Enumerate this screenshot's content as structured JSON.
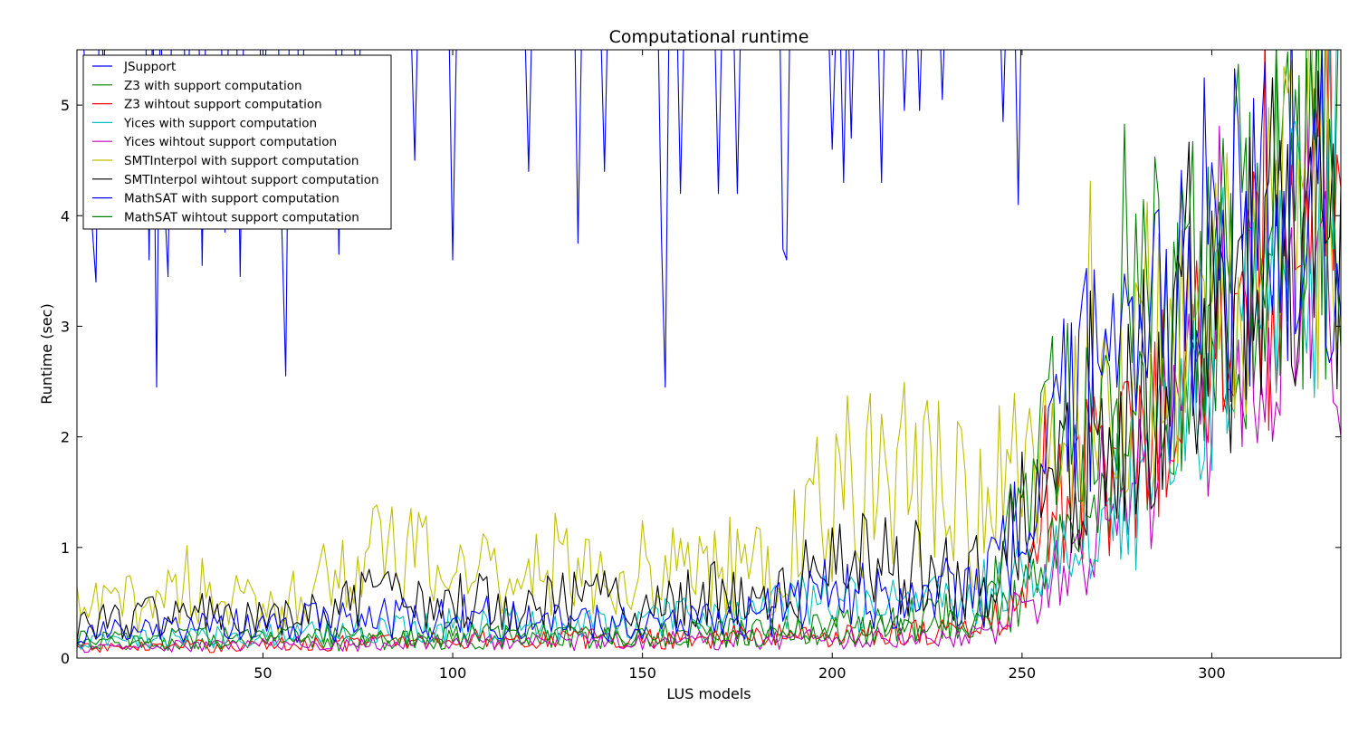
{
  "chart_data": {
    "type": "line",
    "title": "Computational runtime",
    "xlabel": "LUS models",
    "ylabel": "Runtime (sec)",
    "xlim": [
      1,
      334
    ],
    "ylim": [
      0,
      5.5
    ],
    "xticks": [
      50,
      100,
      150,
      200,
      250,
      300
    ],
    "yticks": [
      0,
      1,
      2,
      3,
      4,
      5
    ],
    "grid": false,
    "legend_position": "top-left",
    "series_spec": [
      {
        "name": "JSupport",
        "color": "#0000ff",
        "key": "jsupport",
        "anchors": [
          [
            1,
            5.6
          ],
          [
            3,
            5.4
          ],
          [
            4,
            4.6
          ],
          [
            5,
            3.9
          ],
          [
            6,
            3.4
          ],
          [
            8,
            5.3
          ],
          [
            14,
            5.6
          ],
          [
            20,
            3.6
          ],
          [
            22,
            2.45
          ],
          [
            24,
            4.2
          ],
          [
            25,
            3.45
          ],
          [
            30,
            4.5
          ],
          [
            34,
            3.55
          ],
          [
            40,
            3.85
          ],
          [
            44,
            3.45
          ],
          [
            50,
            4.2
          ],
          [
            55,
            3.85
          ],
          [
            56,
            2.55
          ],
          [
            60,
            3.9
          ],
          [
            70,
            3.65
          ],
          [
            75,
            4.6
          ],
          [
            90,
            4.5
          ],
          [
            100,
            3.6
          ],
          [
            101,
            5.6
          ],
          [
            120,
            4.4
          ],
          [
            133,
            3.75
          ],
          [
            140,
            4.4
          ],
          [
            155,
            3.8
          ],
          [
            156,
            2.45
          ],
          [
            160,
            4.2
          ],
          [
            170,
            4.2
          ],
          [
            175,
            4.2
          ],
          [
            187,
            3.7
          ],
          [
            188,
            3.6
          ],
          [
            190,
            5.6
          ],
          [
            200,
            4.6
          ],
          [
            203,
            4.3
          ],
          [
            205,
            4.7
          ],
          [
            213,
            4.3
          ],
          [
            219,
            4.95
          ],
          [
            223,
            4.95
          ],
          [
            229,
            5.05
          ],
          [
            245,
            4.85
          ],
          [
            249,
            4.1
          ],
          [
            255,
            5.6
          ]
        ]
      },
      {
        "name": "Z3 with support computation",
        "color": "#008000",
        "key": "z3s",
        "anchors": [
          [
            1,
            0.12
          ],
          [
            60,
            0.13
          ],
          [
            100,
            0.16
          ],
          [
            150,
            0.18
          ],
          [
            200,
            0.28
          ],
          [
            240,
            0.4
          ],
          [
            250,
            0.5
          ],
          [
            260,
            1.35
          ],
          [
            270,
            1.5
          ],
          [
            280,
            1.9
          ],
          [
            290,
            2.35
          ],
          [
            300,
            2.9
          ],
          [
            310,
            3.4
          ],
          [
            320,
            3.7
          ],
          [
            334,
            4.2
          ]
        ]
      },
      {
        "name": "Z3 wihtout support computation",
        "color": "#ff0000",
        "key": "z3w",
        "anchors": [
          [
            1,
            0.08
          ],
          [
            60,
            0.12
          ],
          [
            100,
            0.16
          ],
          [
            150,
            0.17
          ],
          [
            200,
            0.2
          ],
          [
            240,
            0.25
          ],
          [
            250,
            0.55
          ],
          [
            260,
            1.2
          ],
          [
            270,
            1.45
          ],
          [
            280,
            1.8
          ],
          [
            290,
            2.3
          ],
          [
            300,
            2.8
          ],
          [
            310,
            3.25
          ],
          [
            320,
            3.6
          ],
          [
            334,
            4.4
          ]
        ]
      },
      {
        "name": "Yices with support computation",
        "color": "#00bfbf",
        "key": "yices",
        "anchors": [
          [
            1,
            0.13
          ],
          [
            60,
            0.22
          ],
          [
            100,
            0.28
          ],
          [
            150,
            0.3
          ],
          [
            200,
            0.5
          ],
          [
            240,
            0.55
          ],
          [
            250,
            0.7
          ],
          [
            260,
            0.85
          ],
          [
            270,
            1.0
          ],
          [
            280,
            1.3
          ],
          [
            290,
            2.0
          ],
          [
            300,
            2.8
          ],
          [
            310,
            3.3
          ],
          [
            320,
            3.6
          ],
          [
            334,
            4.2
          ]
        ]
      },
      {
        "name": "Yices wihtout support computation",
        "color": "#bf00bf",
        "key": "yicesw",
        "anchors": [
          [
            1,
            0.08
          ],
          [
            60,
            0.12
          ],
          [
            100,
            0.14
          ],
          [
            150,
            0.15
          ],
          [
            200,
            0.17
          ],
          [
            240,
            0.2
          ],
          [
            250,
            0.4
          ],
          [
            260,
            0.7
          ],
          [
            270,
            0.9
          ],
          [
            280,
            1.2
          ],
          [
            290,
            1.8
          ],
          [
            300,
            2.5
          ],
          [
            310,
            2.9
          ],
          [
            320,
            3.1
          ],
          [
            334,
            3.2
          ]
        ]
      },
      {
        "name": "SMTInterpol with support computation",
        "color": "#bfbf00",
        "key": "smtis",
        "anchors": [
          [
            1,
            0.4
          ],
          [
            20,
            0.5
          ],
          [
            30,
            0.65
          ],
          [
            50,
            0.38
          ],
          [
            60,
            0.6
          ],
          [
            80,
            0.9
          ],
          [
            100,
            0.75
          ],
          [
            120,
            0.8
          ],
          [
            150,
            0.75
          ],
          [
            170,
            0.8
          ],
          [
            185,
            0.7
          ],
          [
            200,
            1.4
          ],
          [
            220,
            1.6
          ],
          [
            240,
            1.3
          ],
          [
            250,
            1.5
          ],
          [
            260,
            1.8
          ],
          [
            270,
            2.2
          ],
          [
            280,
            2.3
          ],
          [
            290,
            2.6
          ],
          [
            300,
            3.0
          ],
          [
            310,
            3.4
          ],
          [
            320,
            3.9
          ],
          [
            334,
            4.2
          ]
        ]
      },
      {
        "name": "SMTInterpol wihtout support computation",
        "color": "#000000",
        "key": "smtiw",
        "anchors": [
          [
            1,
            0.3
          ],
          [
            20,
            0.35
          ],
          [
            30,
            0.4
          ],
          [
            50,
            0.3
          ],
          [
            60,
            0.35
          ],
          [
            80,
            0.5
          ],
          [
            100,
            0.5
          ],
          [
            120,
            0.5
          ],
          [
            150,
            0.5
          ],
          [
            170,
            0.55
          ],
          [
            185,
            0.5
          ],
          [
            200,
            0.8
          ],
          [
            220,
            0.8
          ],
          [
            240,
            0.7
          ],
          [
            250,
            1.3
          ],
          [
            260,
            1.5
          ],
          [
            270,
            1.8
          ],
          [
            280,
            2.0
          ],
          [
            290,
            2.6
          ],
          [
            300,
            2.8
          ],
          [
            310,
            3.0
          ],
          [
            320,
            3.3
          ],
          [
            334,
            3.6
          ]
        ]
      },
      {
        "name": "MathSAT with support computation",
        "color": "#0000ff",
        "key": "msats",
        "anchors": [
          [
            1,
            0.2
          ],
          [
            60,
            0.3
          ],
          [
            100,
            0.35
          ],
          [
            150,
            0.3
          ],
          [
            180,
            0.35
          ],
          [
            200,
            0.6
          ],
          [
            220,
            0.5
          ],
          [
            240,
            0.6
          ],
          [
            250,
            1.2
          ],
          [
            260,
            2.0
          ],
          [
            270,
            2.6
          ],
          [
            280,
            2.5
          ],
          [
            290,
            3.0
          ],
          [
            300,
            3.3
          ],
          [
            310,
            3.8
          ],
          [
            320,
            4.0
          ],
          [
            334,
            4.5
          ]
        ]
      },
      {
        "name": "MathSAT wihtout support computation",
        "color": "#008000",
        "key": "msatw",
        "anchors": [
          [
            1,
            0.15
          ],
          [
            60,
            0.18
          ],
          [
            100,
            0.2
          ],
          [
            150,
            0.2
          ],
          [
            200,
            0.22
          ],
          [
            240,
            0.28
          ],
          [
            250,
            1.3
          ],
          [
            260,
            2.0
          ],
          [
            270,
            2.6
          ],
          [
            280,
            2.9
          ],
          [
            290,
            3.2
          ],
          [
            300,
            3.5
          ],
          [
            310,
            3.8
          ],
          [
            320,
            4.0
          ],
          [
            334,
            4.3
          ]
        ]
      }
    ]
  }
}
